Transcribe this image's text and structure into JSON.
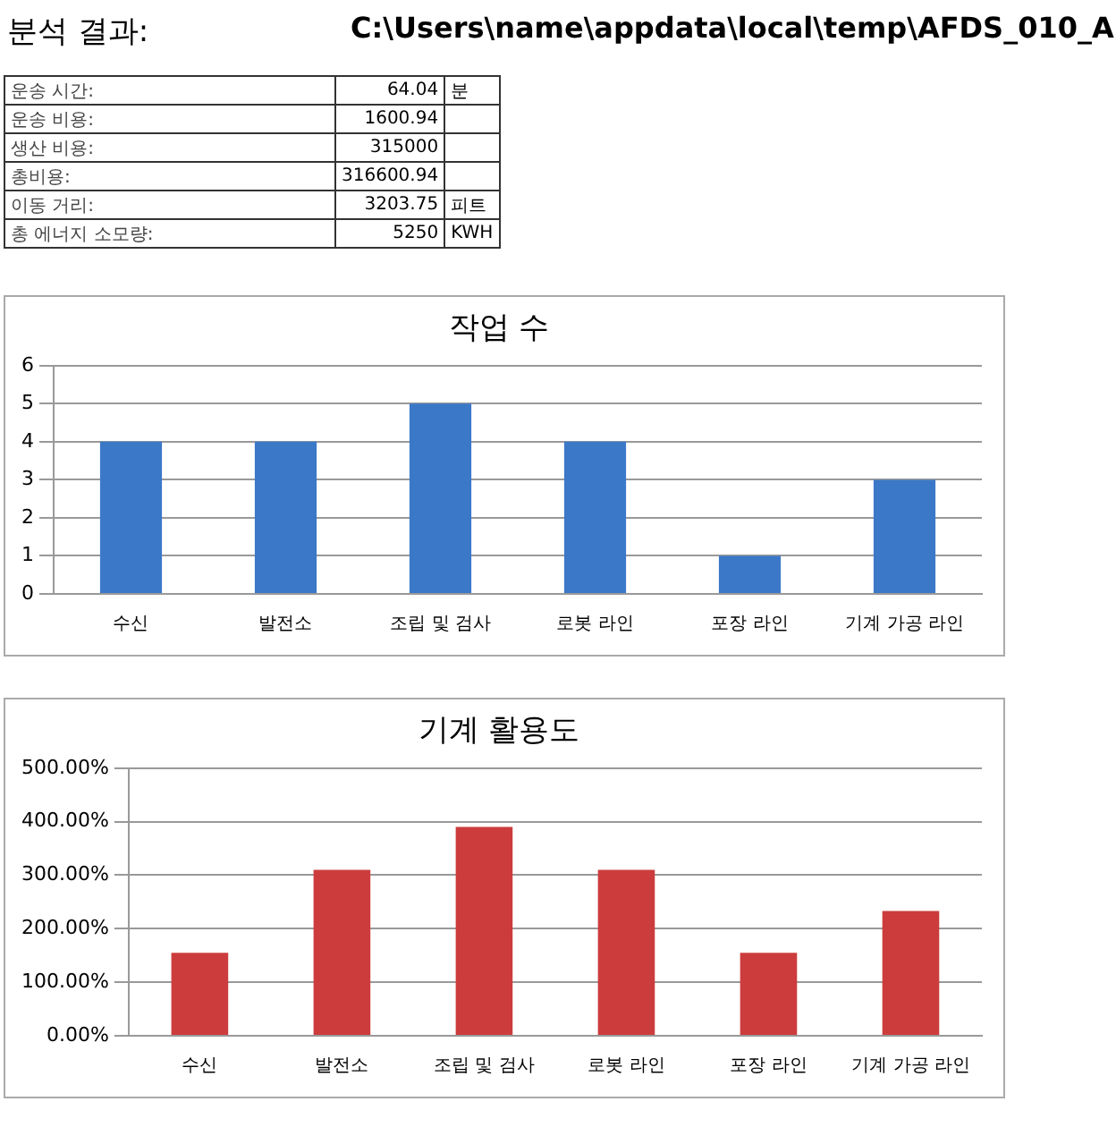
{
  "chart_data": [
    {
      "type": "other",
      "title": "분석 결과:",
      "subtitle": "C:\\Users\\name\\appdata\\local\\temp\\AFDS_010_A",
      "y_categories": [
        "운송 시간:",
        "운송 비용:",
        "생산 비용:",
        "총비용:",
        "이동 거리:",
        "총 에너지 소모량:"
      ],
      "cell_labels": [
        [
          "64.04",
          "분"
        ],
        [
          "1600.94",
          null
        ],
        [
          "315000",
          null
        ],
        [
          "316600.94",
          null
        ],
        [
          "3203.75",
          "피트"
        ],
        [
          "5250",
          "KWH"
        ]
      ]
    },
    {
      "type": "bar",
      "title": "작업 수",
      "categories": [
        "수신",
        "발전소",
        "조립 및 검사",
        "로봇 라인",
        "포장 라인",
        "기계 가공 라인"
      ],
      "values": [
        4,
        4,
        5,
        4,
        1,
        3
      ],
      "color": "#3b78c8",
      "ylim": [
        0,
        6
      ],
      "yticks": [
        0,
        1,
        2,
        3,
        4,
        5,
        6
      ],
      "grid": "y",
      "legend": false
    },
    {
      "type": "bar",
      "title": "기계 활용도",
      "categories": [
        "수신",
        "발전소",
        "조립 및 검사",
        "로봇 라인",
        "포장 라인",
        "기계 가공 라인"
      ],
      "values": [
        155,
        310,
        390,
        310,
        155,
        233
      ],
      "color": "#cc3c3c",
      "ylim": [
        0,
        500
      ],
      "yticks": [
        {
          "value": 0,
          "label": "0.00%"
        },
        {
          "value": 100,
          "label": "100.00%"
        },
        {
          "value": 200,
          "label": "200.00%"
        },
        {
          "value": 300,
          "label": "300.00%"
        },
        {
          "value": 400,
          "label": "400.00%"
        },
        {
          "value": 500,
          "label": "500.00%"
        }
      ],
      "grid": "y",
      "legend": false
    }
  ]
}
